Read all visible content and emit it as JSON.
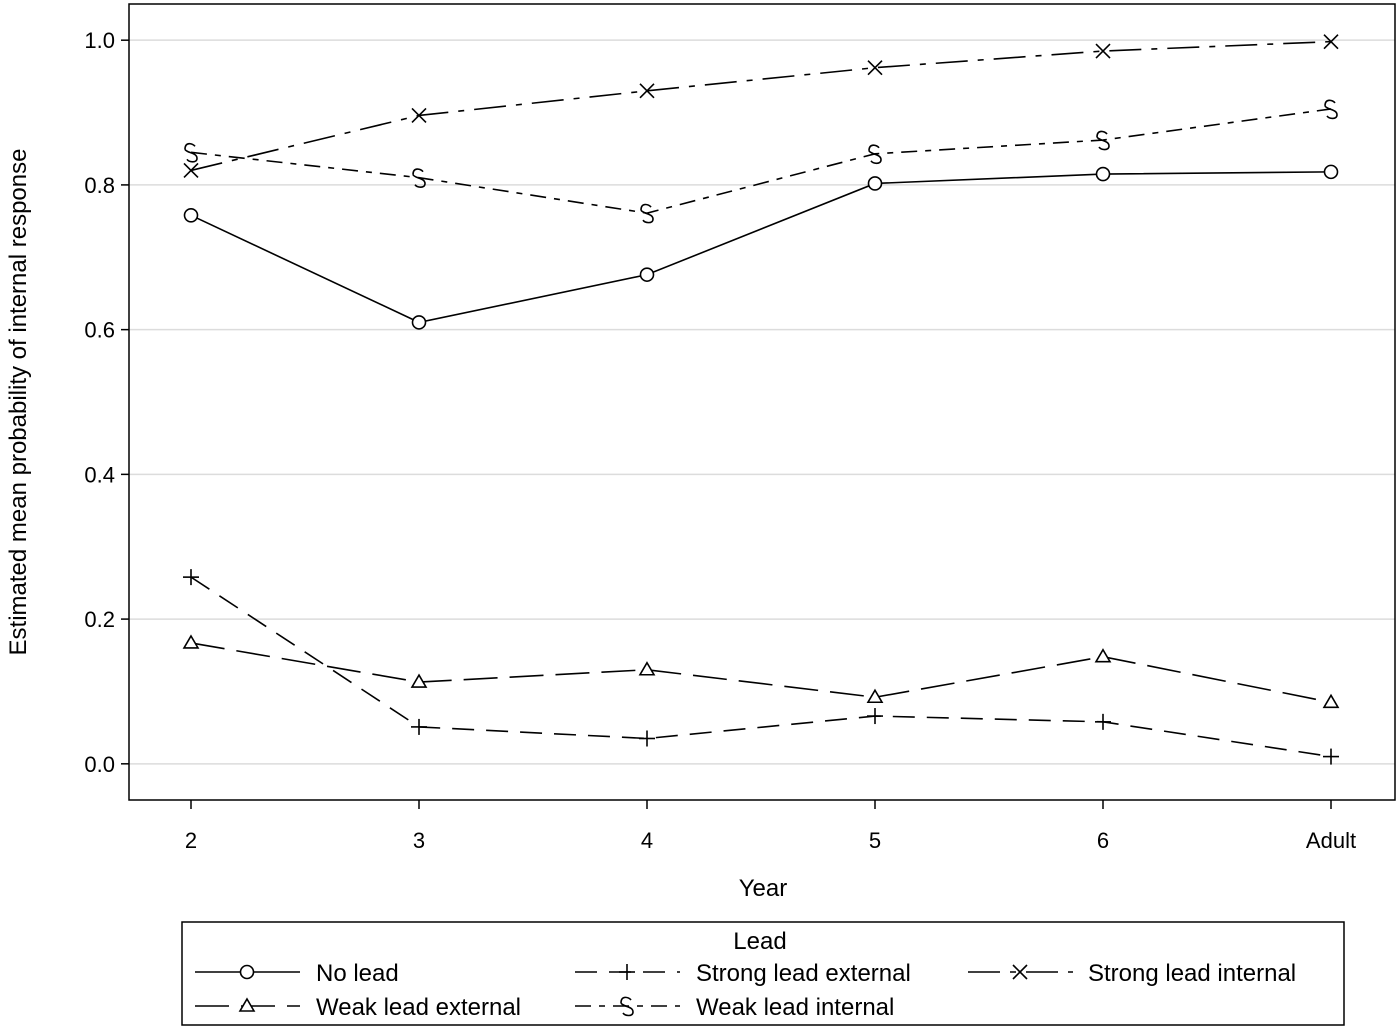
{
  "chart_data": {
    "type": "line",
    "title": "",
    "xlabel": "Year",
    "ylabel": "Estimated mean probability of internal response",
    "categories": [
      "2",
      "3",
      "4",
      "5",
      "6",
      "Adult"
    ],
    "ylim": [
      -0.05,
      1.05
    ],
    "yticks": [
      0.0,
      0.2,
      0.4,
      0.6,
      0.8,
      1.0
    ],
    "ytick_labels": [
      "0.0",
      "0.2",
      "0.4",
      "0.6",
      "0.8",
      "1.0"
    ],
    "grid": "horizontal",
    "legend": {
      "title": "Lead",
      "placement": "bottom"
    },
    "series": [
      {
        "name": "No lead",
        "marker": "circle",
        "dash": "solid",
        "values": [
          0.758,
          0.61,
          0.676,
          0.802,
          0.815,
          0.818
        ]
      },
      {
        "name": "Strong lead external",
        "marker": "plus",
        "dash": "long-dash",
        "values": [
          0.258,
          0.051,
          0.035,
          0.066,
          0.058,
          0.01
        ]
      },
      {
        "name": "Strong lead internal",
        "marker": "x",
        "dash": "long-dash-dot",
        "values": [
          0.82,
          0.896,
          0.93,
          0.962,
          0.985,
          0.998
        ]
      },
      {
        "name": "Weak lead external",
        "marker": "triangle",
        "dash": "medium-dash",
        "values": [
          0.167,
          0.113,
          0.13,
          0.092,
          0.148,
          0.085
        ]
      },
      {
        "name": "Weak lead internal",
        "marker": "tilde",
        "dash": "dash-dot",
        "values": [
          0.845,
          0.81,
          0.761,
          0.843,
          0.862,
          0.905
        ]
      }
    ]
  }
}
